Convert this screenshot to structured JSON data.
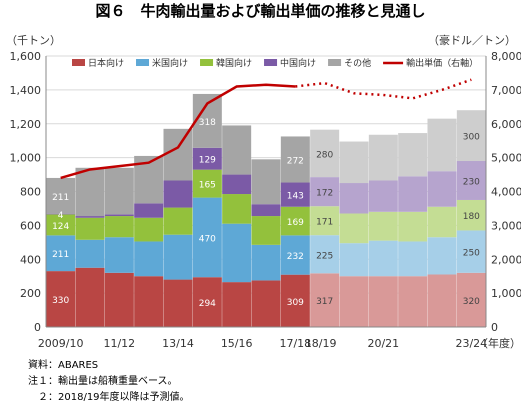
{
  "title": "図６　牛肉輸出量および輸出単価の推移と見通し",
  "notes": [
    "資料：ABARES",
    "注１：輸出量は船積重量ベース。",
    "　２：2018/19年度以降は予測値。"
  ],
  "chart_data": {
    "type": "bar",
    "stacked": true,
    "categories": [
      "2009/10",
      "10/11",
      "11/12",
      "12/13",
      "13/14",
      "14/15",
      "15/16",
      "16/17",
      "17/18",
      "18/19",
      "19/20",
      "20/21",
      "21/22",
      "22/23",
      "23/24"
    ],
    "xtick_labels": [
      "2009/10",
      "",
      "11/12",
      "",
      "13/14",
      "",
      "15/16",
      "",
      "17/18",
      "18/19",
      "",
      "20/21",
      "",
      "",
      "23/24"
    ],
    "xlabel": "（年度）",
    "ylabel_left": "（千トン）",
    "ylabel_right": "（豪ドル／トン）",
    "ylim_left": [
      0,
      1600
    ],
    "yticks_left": [
      "0",
      "200",
      "400",
      "600",
      "800",
      "1,000",
      "1,200",
      "1,400",
      "1,600"
    ],
    "ylim_right": [
      0,
      8000
    ],
    "yticks_right": [
      "0",
      "1,000",
      "2,000",
      "3,000",
      "4,000",
      "5,000",
      "6,000",
      "7,000",
      "8,000"
    ],
    "grid": true,
    "legend_position": "top",
    "forecast_from_index": 9,
    "series": [
      {
        "name": "日本向け",
        "color": "#b94644",
        "values": [
          330,
          350,
          320,
          300,
          280,
          294,
          265,
          275,
          309,
          317,
          300,
          300,
          300,
          310,
          320
        ]
      },
      {
        "name": "米国向け",
        "color": "#5ea8d6",
        "values": [
          211,
          165,
          210,
          205,
          265,
          470,
          345,
          210,
          232,
          225,
          195,
          210,
          205,
          220,
          250
        ]
      },
      {
        "name": "韓国向け",
        "color": "#93c13c",
        "values": [
          124,
          130,
          125,
          140,
          160,
          165,
          175,
          170,
          169,
          171,
          175,
          170,
          175,
          180,
          180
        ]
      },
      {
        "name": "中国向け",
        "color": "#7b5aa6",
        "values": [
          4,
          10,
          10,
          85,
          160,
          129,
          115,
          70,
          143,
          172,
          180,
          185,
          210,
          210,
          230
        ]
      },
      {
        "name": "その他",
        "color": "#a5a5a5",
        "values": [
          211,
          285,
          275,
          280,
          305,
          318,
          290,
          265,
          272,
          280,
          245,
          270,
          255,
          310,
          300
        ]
      }
    ],
    "line": {
      "name": "輸出単価（右軸）",
      "color": "#c00000",
      "axis": "right",
      "values": [
        4400,
        4650,
        4750,
        4850,
        5300,
        6600,
        7100,
        7150,
        7100,
        7200,
        6900,
        6850,
        6750,
        7000,
        7300
      ]
    },
    "data_labels": [
      {
        "series": 0,
        "points": [
          0,
          5,
          8,
          9,
          14
        ],
        "values": [
          "330",
          "294",
          "309",
          "317",
          "320"
        ]
      },
      {
        "series": 1,
        "points": [
          0,
          5,
          8,
          9,
          14
        ],
        "values": [
          "211",
          "470",
          "232",
          "225",
          "250"
        ]
      },
      {
        "series": 2,
        "points": [
          0,
          5,
          8,
          9,
          14
        ],
        "values": [
          "124",
          "165",
          "169",
          "171",
          "180"
        ]
      },
      {
        "series": 3,
        "points": [
          0,
          5,
          8,
          9,
          14
        ],
        "values": [
          "4",
          "129",
          "143",
          "172",
          "230"
        ]
      },
      {
        "series": 4,
        "points": [
          0,
          5,
          8,
          9,
          14
        ],
        "values": [
          "211",
          "318",
          "272",
          "280",
          "300"
        ]
      }
    ]
  }
}
